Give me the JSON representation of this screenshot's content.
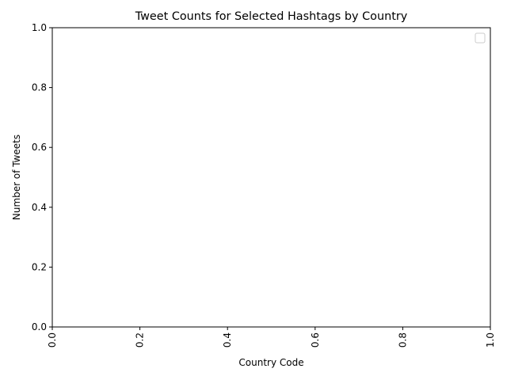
{
  "chart_data": {
    "type": "bar",
    "title": "Tweet Counts for Selected Hashtags by Country",
    "xlabel": "Country Code",
    "ylabel": "Number of Tweets",
    "xlim": [
      0.0,
      1.0
    ],
    "ylim": [
      0.0,
      1.0
    ],
    "xticks": [
      "0.0",
      "0.2",
      "0.4",
      "0.6",
      "0.8",
      "1.0"
    ],
    "yticks": [
      "0.0",
      "0.2",
      "0.4",
      "0.6",
      "0.8",
      "1.0"
    ],
    "xtick_rotation": "vertical",
    "categories": [],
    "series": [],
    "legend": {
      "position": "top-right",
      "entries": []
    },
    "grid": false
  }
}
